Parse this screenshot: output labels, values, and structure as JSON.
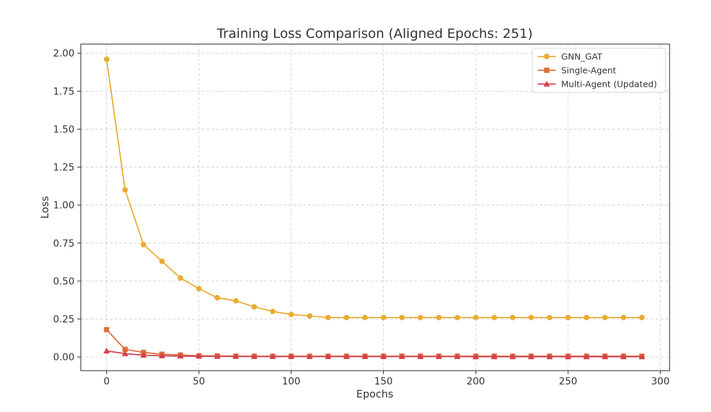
{
  "chart_data": {
    "type": "line",
    "title": "Training Loss Comparison (Aligned Epochs: 251)",
    "xlabel": "Epochs",
    "ylabel": "Loss",
    "xlim": [
      -14,
      305
    ],
    "ylim": [
      -0.09,
      2.06
    ],
    "xticks": [
      0,
      50,
      100,
      150,
      200,
      250,
      300
    ],
    "xtick_labels": [
      "0",
      "50",
      "100",
      "150",
      "200",
      "250",
      "300"
    ],
    "yticks": [
      0.0,
      0.25,
      0.5,
      0.75,
      1.0,
      1.25,
      1.5,
      1.75,
      2.0
    ],
    "ytick_labels": [
      "0.00",
      "0.25",
      "0.50",
      "0.75",
      "1.00",
      "1.25",
      "1.50",
      "1.75",
      "2.00"
    ],
    "grid": true,
    "legend_position": "top-right",
    "x": [
      0,
      10,
      20,
      30,
      40,
      50,
      60,
      70,
      80,
      90,
      100,
      110,
      120,
      130,
      140,
      150,
      160,
      170,
      180,
      190,
      200,
      210,
      220,
      230,
      240,
      250,
      260,
      270,
      280,
      290
    ],
    "series": [
      {
        "name": "GNN_GAT",
        "color": "#e8ac33",
        "marker": "circle",
        "values": [
          1.96,
          1.1,
          0.74,
          0.63,
          0.52,
          0.45,
          0.39,
          0.37,
          0.33,
          0.3,
          0.28,
          0.27,
          0.26,
          0.26,
          0.26,
          0.26,
          0.26,
          0.26,
          0.26,
          0.26,
          0.26,
          0.26,
          0.26,
          0.26,
          0.26,
          0.26,
          0.26,
          0.26,
          0.26,
          0.26
        ]
      },
      {
        "name": "Single-Agent",
        "color": "#dd6d3a",
        "marker": "square",
        "values": [
          0.18,
          0.05,
          0.03,
          0.018,
          0.013,
          0.008,
          0.007,
          0.005,
          0.005,
          0.005,
          0.005,
          0.005,
          0.005,
          0.005,
          0.005,
          0.005,
          0.005,
          0.005,
          0.005,
          0.005,
          0.005,
          0.005,
          0.005,
          0.005,
          0.005,
          0.005,
          0.005,
          0.005,
          0.005,
          0.005
        ]
      },
      {
        "name": "Multi-Agent (Updated)",
        "color": "#d4414f",
        "marker": "triangle",
        "values": [
          0.04,
          0.022,
          0.012,
          0.008,
          0.006,
          0.005,
          0.004,
          0.004,
          0.003,
          0.003,
          0.003,
          0.003,
          0.003,
          0.003,
          0.003,
          0.003,
          0.003,
          0.003,
          0.003,
          0.003,
          0.002,
          0.002,
          0.002,
          0.002,
          0.002,
          0.002,
          0.002,
          0.002,
          0.002,
          0.002
        ]
      }
    ]
  }
}
